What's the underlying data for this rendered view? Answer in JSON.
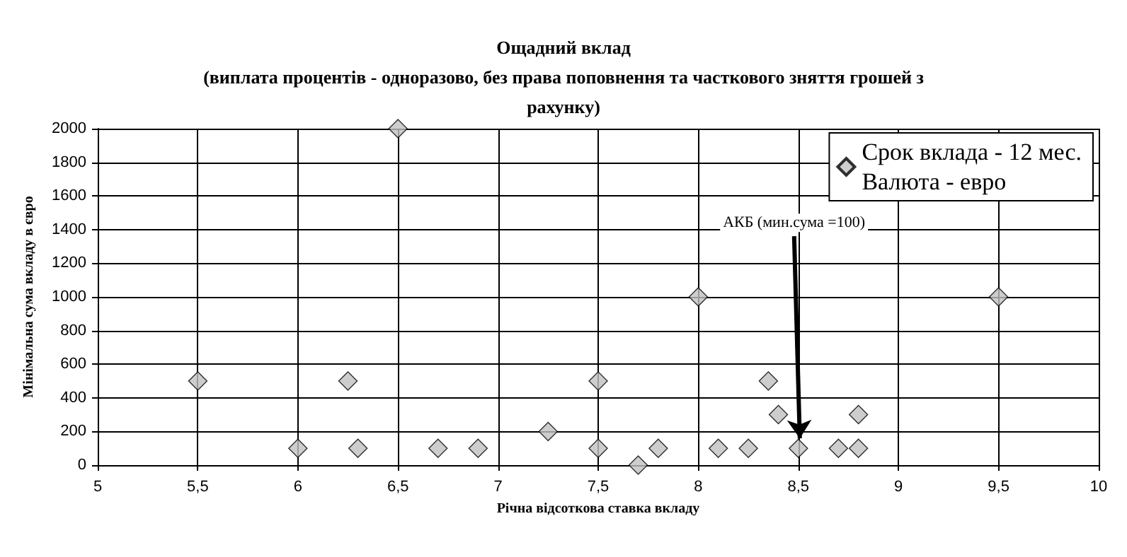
{
  "chart_data": {
    "type": "scatter",
    "title": "Ощадний вклад\n(виплата процентів - одноразово, без права поповнення та часткового зняття грошей з\nрахунку)",
    "xlabel": "Річна відсоткова ставка вкладу",
    "ylabel": "Мінімальна сума вкладу в євро",
    "x": [
      5.5,
      6,
      6.25,
      6.3,
      6.5,
      6.7,
      6.9,
      7.25,
      7.5,
      7.5,
      7.7,
      7.8,
      8,
      8.1,
      8.25,
      8.35,
      8.4,
      8.5,
      8.7,
      8.8,
      8.8,
      9.5
    ],
    "series": [
      {
        "name": "Срок вклада - 12 мес.\nВалюта - евро",
        "color": "#c0c0c0",
        "values": [
          500,
          100,
          500,
          100,
          2000,
          100,
          100,
          200,
          500,
          100,
          0,
          100,
          1000,
          100,
          100,
          500,
          300,
          100,
          100,
          300,
          100,
          1000
        ]
      }
    ],
    "xlim": [
      5,
      10
    ],
    "xticks": [
      5,
      {
        "value": 5.5,
        "label": "5,5"
      },
      6,
      {
        "value": 6.5,
        "label": "6,5"
      },
      7,
      {
        "value": 7.5,
        "label": "7,5"
      },
      8,
      {
        "value": 8.5,
        "label": "8,5"
      },
      9,
      {
        "value": 9.5,
        "label": "9,5"
      },
      10
    ],
    "ylim": [
      0,
      2000
    ],
    "yticks": [
      0,
      200,
      400,
      600,
      800,
      1000,
      1200,
      1400,
      1600,
      1800,
      2000
    ],
    "annotations": [
      {
        "text": "АКБ (мин.сума =100)",
        "x": 8.5,
        "y": 100
      }
    ],
    "grid": true,
    "legend": "top right",
    "marker": "diamond"
  }
}
